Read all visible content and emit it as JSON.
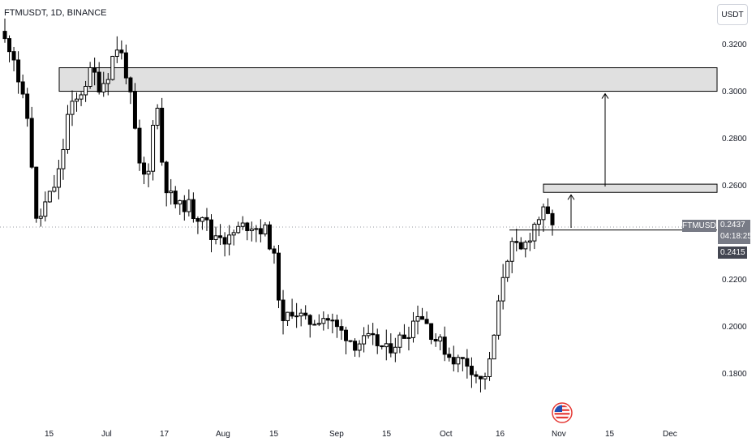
{
  "header": {
    "symbol_line": "FTMUSDT, 1D, BINANCE"
  },
  "toolbar": {
    "unit_label": "USDT"
  },
  "price_axis": {
    "labels": [
      "0.3200",
      "0.3000",
      "0.2800",
      "0.2600",
      "0.2200",
      "0.2000",
      "0.1800"
    ]
  },
  "time_axis": {
    "labels": [
      "15",
      "Jul",
      "17",
      "Aug",
      "15",
      "Sep",
      "15",
      "Oct",
      "16",
      "Nov",
      "15",
      "Dec"
    ]
  },
  "tags": {
    "symbol": "FTMUSDT",
    "last_price": "0.2437",
    "countdown": "04:18:25",
    "line_price": "0.2415"
  },
  "colors": {
    "candle": "#000000",
    "zone_fill": "#e0e0e0",
    "zone_border": "#000000",
    "axis_text": "#131722",
    "tag_bg": "#787b86",
    "tag_text": "#ffffff"
  },
  "icons": {
    "event": "us-flag-icon"
  },
  "chart_data": {
    "type": "candlestick",
    "symbol": "FTMUSDT",
    "interval": "1D",
    "exchange": "BINANCE",
    "y_axis": {
      "unit": "USDT",
      "ticks": [
        0.32,
        0.3,
        0.28,
        0.26,
        0.22,
        0.2,
        0.18
      ],
      "range": [
        0.17,
        0.33
      ]
    },
    "x_axis": {
      "ticks": [
        "15",
        "Jul",
        "17",
        "Aug",
        "15",
        "Sep",
        "15",
        "Oct",
        "16",
        "Nov",
        "15",
        "Dec"
      ]
    },
    "close_path": [
      0.322,
      0.318,
      0.3,
      0.287,
      0.243,
      0.252,
      0.258,
      0.268,
      0.292,
      0.296,
      0.303,
      0.31,
      0.302,
      0.308,
      0.32,
      0.314,
      0.294,
      0.267,
      0.262,
      0.302,
      0.263,
      0.255,
      0.251,
      0.253,
      0.247,
      0.249,
      0.238,
      0.241,
      0.236,
      0.241,
      0.243,
      0.244,
      0.242,
      0.241,
      0.228,
      0.2,
      0.208,
      0.206,
      0.202,
      0.203,
      0.205,
      0.203,
      0.199,
      0.197,
      0.193,
      0.194,
      0.195,
      0.193,
      0.19,
      0.193,
      0.196,
      0.199,
      0.207,
      0.203,
      0.196,
      0.193,
      0.188,
      0.186,
      0.186,
      0.182,
      0.177,
      0.183,
      0.204,
      0.228,
      0.235,
      0.232,
      0.238,
      0.246,
      0.249,
      0.2437
    ],
    "zones": [
      {
        "low": 0.3005,
        "high": 0.3105
      },
      {
        "low": 0.2575,
        "high": 0.261
      }
    ],
    "horizontal_line": 0.2415,
    "last_price": 0.2437,
    "targets": [
      0.3005,
      0.2575
    ]
  }
}
